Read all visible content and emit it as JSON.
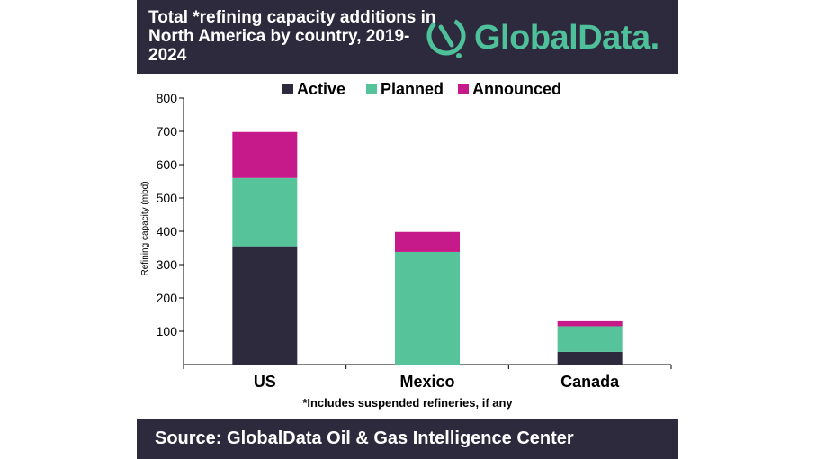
{
  "header": {
    "title": "Total *refining capacity additions in North America by country, 2019-2024",
    "logo_text": "GlobalData."
  },
  "footer": {
    "source": "Source:  GlobalData Oil & Gas Intelligence Center"
  },
  "colors": {
    "header_bg": "#2d2a3e",
    "brand_green": "#4fc19a",
    "active": "#2d2a3e",
    "planned": "#57c39a",
    "announced": "#c71a8a"
  },
  "chart_data": {
    "type": "bar",
    "stacked": true,
    "categories": [
      "US",
      "Mexico",
      "Canada"
    ],
    "series": [
      {
        "name": "Active",
        "values": [
          355,
          0,
          38
        ],
        "color": "#2d2a3e"
      },
      {
        "name": "Planned",
        "values": [
          205,
          338,
          77
        ],
        "color": "#57c39a"
      },
      {
        "name": "Announced",
        "values": [
          138,
          60,
          15
        ],
        "color": "#c71a8a"
      }
    ],
    "ylabel": "Refining capacity (mbd)",
    "xlabel": "",
    "ylim": [
      0,
      800
    ],
    "yticks": [
      100,
      200,
      300,
      400,
      500,
      600,
      700,
      800
    ],
    "legend_position": "top",
    "grid": false,
    "footnote": "*Includes suspended refineries, if any"
  }
}
